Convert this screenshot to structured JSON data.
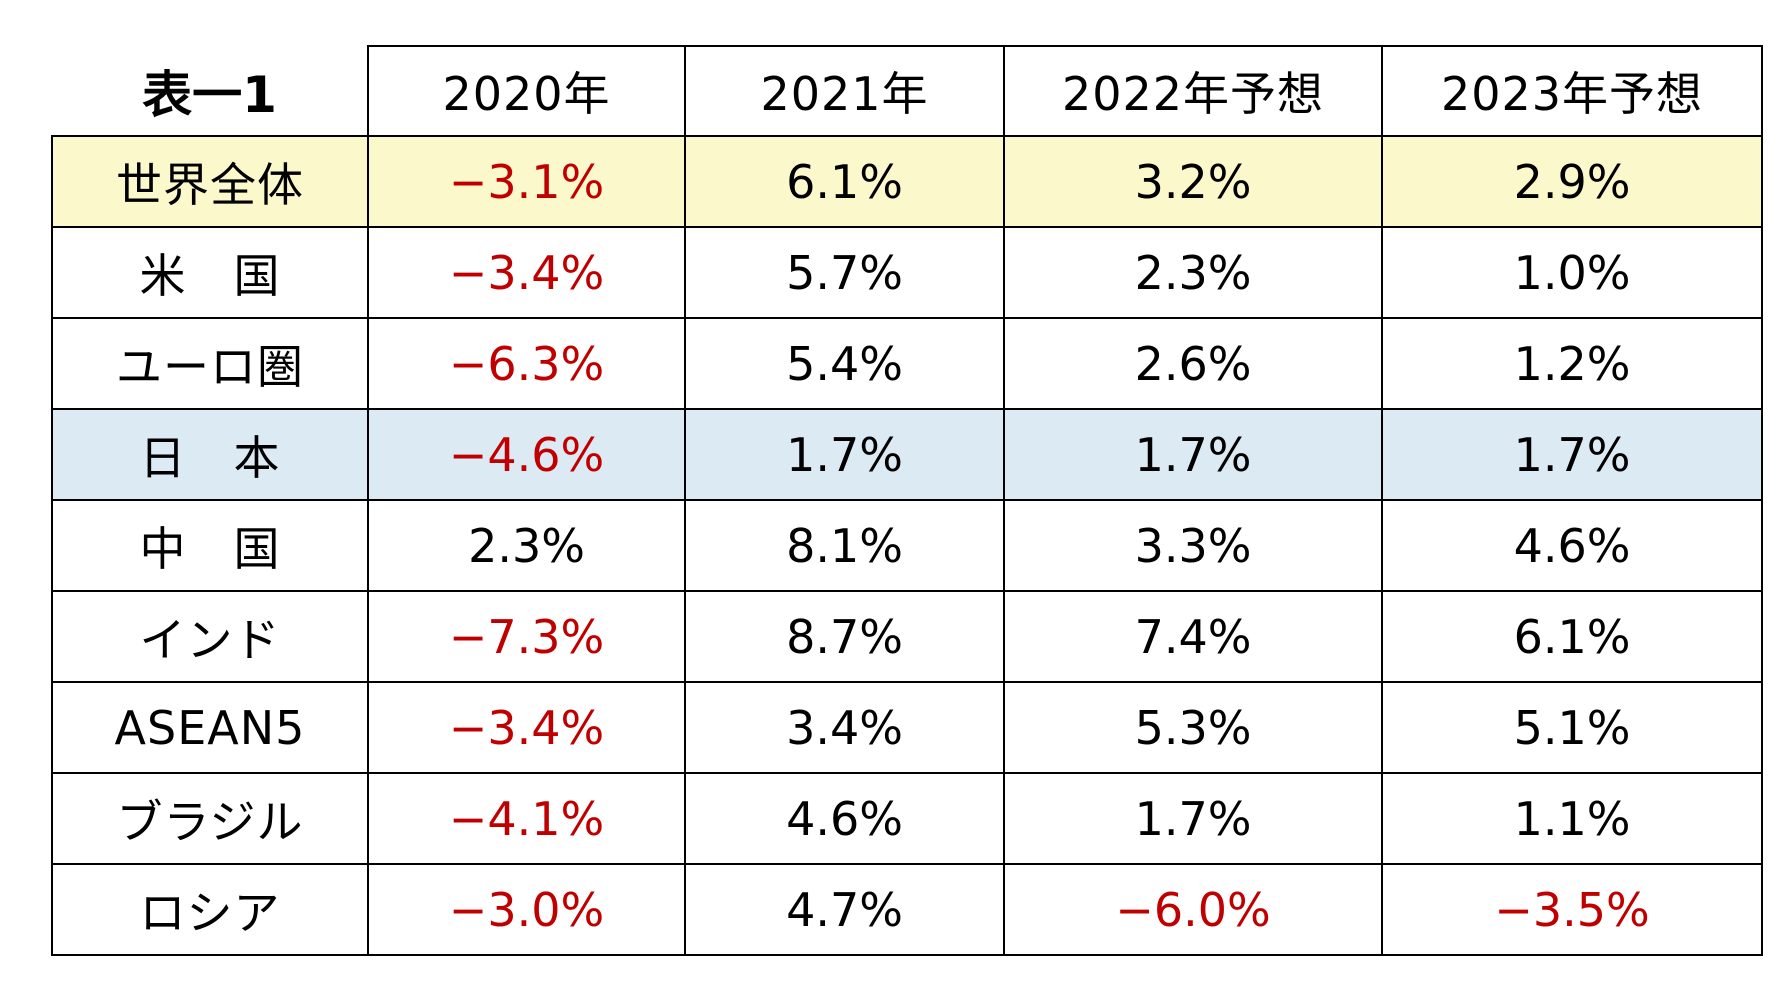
{
  "chart_data": {
    "type": "table",
    "title": "表一1",
    "columns": [
      "2020年",
      "2021年",
      "2022年予想",
      "2023年予想"
    ],
    "rows": [
      {
        "label": "世界全体",
        "values": [
          "−3.1%",
          "6.1%",
          "3.2%",
          "2.9%"
        ],
        "highlight": "#fbf8cb"
      },
      {
        "label": "米　国",
        "values": [
          "−3.4%",
          "5.7%",
          "2.3%",
          "1.0%"
        ]
      },
      {
        "label": "ユーロ圏",
        "values": [
          "−6.3%",
          "5.4%",
          "2.6%",
          "1.2%"
        ]
      },
      {
        "label": "日　本",
        "values": [
          "−4.6%",
          "1.7%",
          "1.7%",
          "1.7%"
        ],
        "highlight": "#dceaf3"
      },
      {
        "label": "中　国",
        "values": [
          "2.3%",
          "8.1%",
          "3.3%",
          "4.6%"
        ]
      },
      {
        "label": "インド",
        "values": [
          "−7.3%",
          "8.7%",
          "7.4%",
          "6.1%"
        ]
      },
      {
        "label": "ASEAN5",
        "values": [
          "−3.4%",
          "3.4%",
          "5.3%",
          "5.1%"
        ]
      },
      {
        "label": "ブラジル",
        "values": [
          "−4.1%",
          "4.6%",
          "1.7%",
          "1.1%"
        ]
      },
      {
        "label": "ロシア",
        "values": [
          "−3.0%",
          "4.7%",
          "−6.0%",
          "−3.5%"
        ]
      }
    ],
    "negative_color": "#c00000",
    "grid": true
  }
}
